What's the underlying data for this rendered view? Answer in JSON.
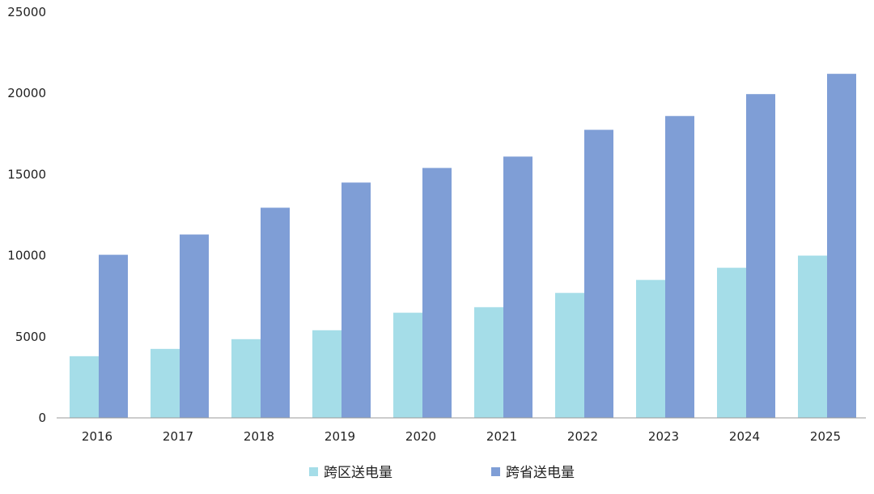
{
  "chart_data": {
    "type": "bar",
    "title": "",
    "xlabel": "",
    "ylabel": "",
    "categories": [
      "2016",
      "2017",
      "2018",
      "2019",
      "2020",
      "2021",
      "2022",
      "2023",
      "2024",
      "2025"
    ],
    "series": [
      {
        "name": "跨区送电量",
        "color": "#a5dde8",
        "values": [
          3800,
          4250,
          4850,
          5400,
          6480,
          6820,
          7700,
          8500,
          9250,
          10000
        ]
      },
      {
        "name": "跨省送电量",
        "color": "#7f9ed6",
        "values": [
          10050,
          11300,
          12950,
          14500,
          15400,
          16100,
          17750,
          18600,
          19950,
          21200
        ]
      }
    ],
    "ylim": [
      0,
      25000
    ],
    "yticks": [
      0,
      5000,
      10000,
      15000,
      20000,
      25000
    ],
    "grid": false,
    "legend_position": "bottom"
  }
}
